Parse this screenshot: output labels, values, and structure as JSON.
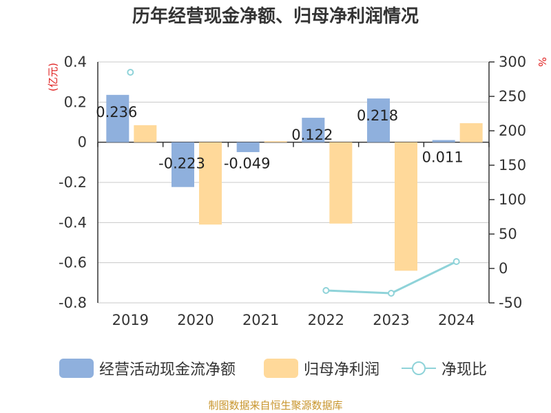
{
  "title": "历年经营现金净额、归母净利润情况",
  "source": "制图数据来自恒生聚源数据库",
  "chart_data": {
    "type": "bar",
    "title": "历年经营现金净额、归母净利润情况",
    "categories": [
      "2019",
      "2020",
      "2021",
      "2022",
      "2023",
      "2024"
    ],
    "y_left": {
      "label": "(亿元)",
      "range": [
        -0.8,
        0.4
      ],
      "ticks": [
        "0.4",
        "0.2",
        "0",
        "-0.2",
        "-0.4",
        "-0.6",
        "-0.8"
      ],
      "tick_values": [
        0.4,
        0.2,
        0,
        -0.2,
        -0.4,
        -0.6,
        -0.8
      ]
    },
    "y_right": {
      "label": "%",
      "range": [
        -50,
        300
      ],
      "ticks": [
        "300",
        "250",
        "200",
        "150",
        "100",
        "50",
        "0",
        "-50"
      ],
      "tick_values": [
        300,
        250,
        200,
        150,
        100,
        50,
        0,
        -50
      ]
    },
    "grid": true,
    "legend_position": "bottom",
    "series": [
      {
        "name": "经营活动现金流净额",
        "kind": "bar",
        "axis": "left",
        "color": "#8fb0dd",
        "values": [
          0.236,
          -0.223,
          -0.049,
          0.122,
          0.218,
          0.011
        ],
        "labels": [
          "0.236",
          "-0.223",
          "-0.049",
          "0.122",
          "0.218",
          "0.011"
        ]
      },
      {
        "name": "归母净利润",
        "kind": "bar",
        "axis": "left",
        "color": "#ffd99a",
        "values": [
          0.085,
          -0.41,
          0.005,
          -0.405,
          -0.64,
          0.095
        ]
      },
      {
        "name": "净现比",
        "kind": "line",
        "axis": "right",
        "color": "#8fd3d9",
        "values": [
          285,
          null,
          null,
          -32,
          -36,
          10
        ]
      }
    ]
  }
}
